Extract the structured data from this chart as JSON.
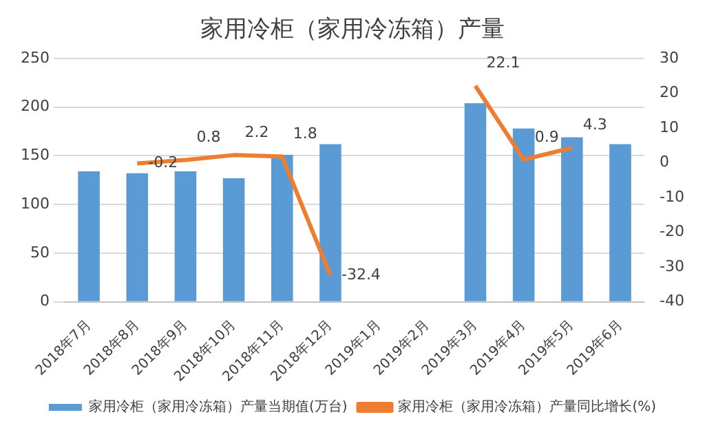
{
  "chart_data": {
    "type": "bar",
    "title": "家用冷柜（家用冷冻箱）产量",
    "categories": [
      "2018年7月",
      "2018年8月",
      "2018年9月",
      "2018年10月",
      "2018年11月",
      "2018年12月",
      "2019年1月",
      "2019年2月",
      "2019年3月",
      "2019年4月",
      "2019年5月",
      "2019年6月"
    ],
    "series": [
      {
        "name": "家用冷柜（家用冷冻箱）产量当期值(万台)",
        "color": "#5b9bd5",
        "values": [
          134,
          132,
          134,
          127,
          151,
          162,
          null,
          null,
          204,
          178,
          169,
          162
        ]
      },
      {
        "name": "家用冷柜（家用冷冻箱）产量同比增长(%)",
        "type": "line",
        "axis": "y2",
        "color": "#ed7d31",
        "values": [
          null,
          -0.2,
          0.8,
          2.2,
          1.8,
          -32.4,
          null,
          null,
          22.1,
          0.9,
          4.3,
          null
        ],
        "value_labels": [
          null,
          "-0.2",
          "0.8",
          "2.2",
          "1.8",
          "-32.4",
          null,
          null,
          "22.1",
          "0.9",
          "4.3",
          null
        ]
      }
    ],
    "ylim": [
      0,
      250
    ],
    "yticks": [
      0,
      50,
      100,
      150,
      200,
      250
    ],
    "y2lim": [
      -40,
      30
    ],
    "y2ticks": [
      -40,
      -30,
      -20,
      -10,
      0,
      10,
      20,
      30
    ],
    "grid": "y",
    "legend": "bottom",
    "marker": "none"
  }
}
